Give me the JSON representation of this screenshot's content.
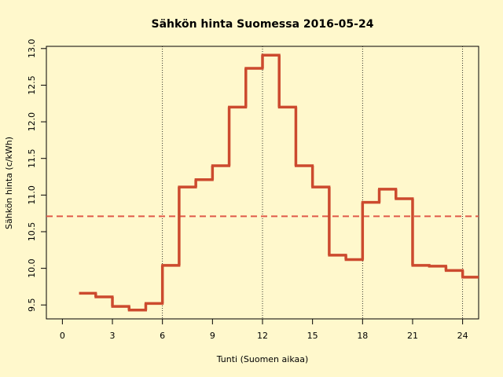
{
  "chart_data": {
    "type": "step",
    "title": "Sähkön hinta Suomessa 2016-05-24",
    "xlabel": "Tunti (Suomen aikaa)",
    "ylabel": "Sähkön hinta (c/kWh)",
    "x": [
      1,
      2,
      3,
      4,
      5,
      6,
      7,
      8,
      9,
      10,
      11,
      12,
      13,
      14,
      15,
      16,
      17,
      18,
      19,
      20,
      21,
      22,
      23,
      24
    ],
    "values": [
      9.66,
      9.61,
      9.48,
      9.43,
      9.52,
      10.04,
      11.11,
      11.21,
      11.4,
      12.2,
      12.73,
      12.91,
      12.2,
      11.4,
      11.11,
      10.18,
      10.12,
      10.9,
      11.08,
      10.95,
      10.04,
      10.03,
      9.97,
      9.88
    ],
    "color": "#cc4a2e",
    "mean_line": 10.71,
    "mean_color": "#e05a4a",
    "vlines": [
      6,
      12,
      18,
      24
    ],
    "xlim": [
      -0.96,
      24.96
    ],
    "ylim": [
      9.31,
      13.03
    ],
    "xticks": [
      0,
      3,
      6,
      9,
      12,
      15,
      18,
      21,
      24
    ],
    "yticks": [
      9.5,
      {
        "value": 10,
        "label": "10.0"
      },
      10.5,
      {
        "value": 11,
        "label": "11.0"
      },
      11.5,
      {
        "value": 12,
        "label": "12.0"
      },
      12.5,
      {
        "value": 13,
        "label": "13.0"
      }
    ]
  }
}
